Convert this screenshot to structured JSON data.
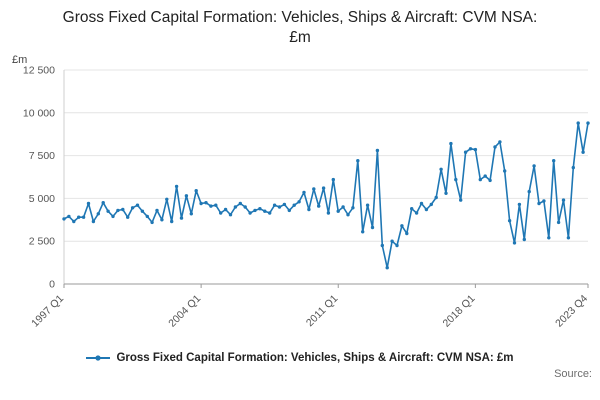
{
  "chart_data": {
    "type": "line",
    "title": "Gross Fixed Capital Formation: Vehicles, Ships & Aircraft: CVM NSA: £m",
    "unit_label": "£m",
    "x_start": "1997 Q1",
    "x_end": "2023 Q4",
    "frequency": "quarterly",
    "ylim": [
      0,
      12500
    ],
    "grid": "horizontal",
    "legend_position": "bottom",
    "line_color": "#1f77b4",
    "yticks": [
      {
        "value": 0,
        "label": "0"
      },
      {
        "value": 2500,
        "label": "2 500"
      },
      {
        "value": 5000,
        "label": "5 000"
      },
      {
        "value": 7500,
        "label": "7 500"
      },
      {
        "value": 10000,
        "label": "10 000"
      },
      {
        "value": 12500,
        "label": "12 500"
      }
    ],
    "xticks": [
      {
        "index": 0,
        "label": "1997 Q1"
      },
      {
        "index": 28,
        "label": "2004 Q1"
      },
      {
        "index": 56,
        "label": "2011 Q1"
      },
      {
        "index": 84,
        "label": "2018 Q1"
      },
      {
        "index": 107,
        "label": "2023 Q4"
      }
    ],
    "series": [
      {
        "name": "Gross Fixed Capital Formation: Vehicles, Ships & Aircraft: CVM NSA: £m",
        "color": "#1f77b4",
        "values": [
          3800,
          3950,
          3650,
          3900,
          3900,
          4700,
          3650,
          4100,
          4750,
          4250,
          3950,
          4300,
          4350,
          3900,
          4450,
          4600,
          4250,
          3950,
          3600,
          4300,
          3750,
          4950,
          3650,
          5700,
          3850,
          5150,
          4100,
          5450,
          4700,
          4750,
          4550,
          4600,
          4150,
          4350,
          4050,
          4500,
          4700,
          4500,
          4150,
          4300,
          4400,
          4250,
          4150,
          4600,
          4500,
          4650,
          4300,
          4600,
          4800,
          5350,
          4350,
          5550,
          4550,
          5600,
          4150,
          6100,
          4250,
          4500,
          4050,
          4450,
          7200,
          3050,
          4600,
          3300,
          7800,
          2250,
          950,
          2500,
          2250,
          3400,
          2950,
          4400,
          4150,
          4700,
          4350,
          4650,
          5050,
          6700,
          5300,
          8200,
          6100,
          4900,
          7700,
          7900,
          7850,
          6100,
          6300,
          6050,
          8000,
          8300,
          6600,
          3700,
          2400,
          4650,
          2600,
          5400,
          6900,
          4700,
          4850,
          2700,
          7200,
          3600,
          4900,
          2700,
          6800,
          9400,
          7700,
          9400
        ]
      }
    ]
  },
  "legend": {
    "label": "Gross Fixed Capital Formation: Vehicles, Ships & Aircraft: CVM NSA: £m"
  },
  "footer": {
    "source": "Source:"
  }
}
